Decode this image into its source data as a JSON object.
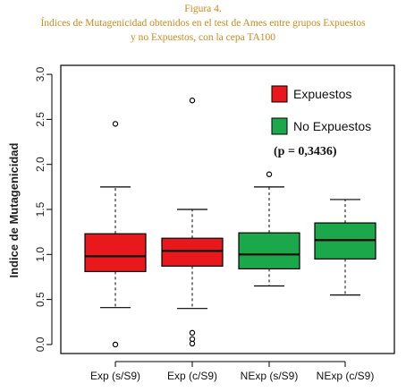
{
  "caption": {
    "line1": "Figura 4.",
    "line2": "Índices de Mutagenicidad obtenidos en el test de Ames entre grupos Expuestos",
    "line3": "y no Expuestos, con la cepa TA100"
  },
  "chart_data": {
    "type": "boxplot",
    "ylabel": "Indice de Mutagenicidad",
    "ylim": [
      -0.1,
      3.1
    ],
    "yticks": [
      "0.0",
      "0.5",
      "1.0",
      "1.5",
      "2.0",
      "2.5",
      "3.0"
    ],
    "categories": [
      "Exp (s/S9)",
      "Exp (c/S9)",
      "NExp (s/S9)",
      "NExp (c/S9)"
    ],
    "boxes": [
      {
        "whisker_low": 0.41,
        "q1": 0.81,
        "median": 0.98,
        "q3": 1.23,
        "whisker_high": 1.75,
        "outliers": [
          2.45,
          0.0
        ],
        "color": "#e8181c"
      },
      {
        "whisker_low": 0.4,
        "q1": 0.87,
        "median": 1.04,
        "q3": 1.18,
        "whisker_high": 1.5,
        "outliers": [
          2.71,
          0.13,
          0.06,
          0.01
        ],
        "color": "#e8181c"
      },
      {
        "whisker_low": 0.65,
        "q1": 0.84,
        "median": 1.0,
        "q3": 1.24,
        "whisker_high": 1.75,
        "outliers": [
          1.89
        ],
        "color": "#1ba84a"
      },
      {
        "whisker_low": 0.55,
        "q1": 0.95,
        "median": 1.16,
        "q3": 1.35,
        "whisker_high": 1.61,
        "outliers": [],
        "color": "#1ba84a"
      }
    ],
    "legend": [
      {
        "label": "Expuestos",
        "color": "#e8181c"
      },
      {
        "label": "No Expuestos",
        "color": "#1ba84a"
      }
    ],
    "annotation": "(p = 0,3436)",
    "legend_position": "top-right",
    "grid": false
  }
}
